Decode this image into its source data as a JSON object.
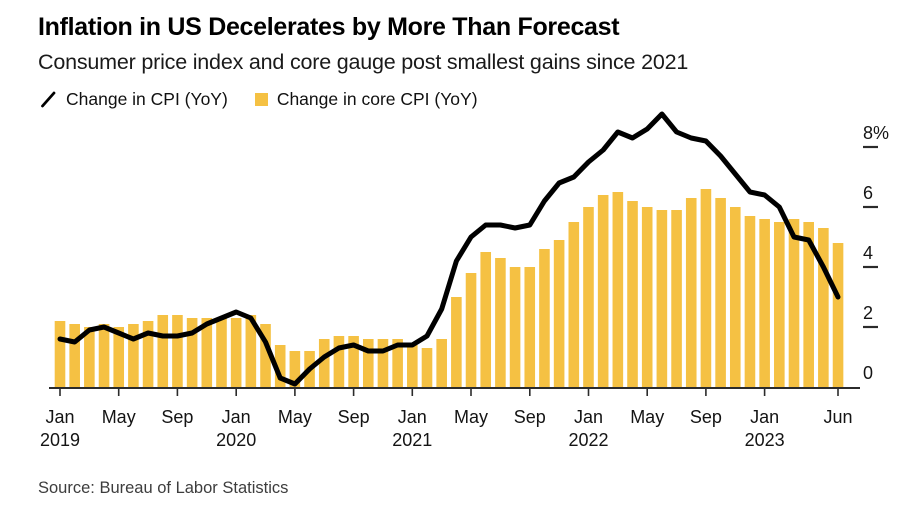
{
  "chart_data": {
    "type": "bar+line",
    "title": "Inflation in US Decelerates by More Than Forecast",
    "subtitle": "Consumer price index and core gauge post smallest gains since 2021",
    "source": "Source: Bureau of Labor Statistics",
    "legend_position": "top-left",
    "grid": false,
    "axis_color": "#2b2b2b",
    "text_color": "#141414",
    "ylim": [
      0,
      9.5
    ],
    "y_unit": "%",
    "x": [
      "Jan 2019",
      "Feb 2019",
      "Mar 2019",
      "Apr 2019",
      "May 2019",
      "Jun 2019",
      "Jul 2019",
      "Aug 2019",
      "Sep 2019",
      "Oct 2019",
      "Nov 2019",
      "Dec 2019",
      "Jan 2020",
      "Feb 2020",
      "Mar 2020",
      "Apr 2020",
      "May 2020",
      "Jun 2020",
      "Jul 2020",
      "Aug 2020",
      "Sep 2020",
      "Oct 2020",
      "Nov 2020",
      "Dec 2020",
      "Jan 2021",
      "Feb 2021",
      "Mar 2021",
      "Apr 2021",
      "May 2021",
      "Jun 2021",
      "Jul 2021",
      "Aug 2021",
      "Sep 2021",
      "Oct 2021",
      "Nov 2021",
      "Dec 2021",
      "Jan 2022",
      "Feb 2022",
      "Mar 2022",
      "Apr 2022",
      "May 2022",
      "Jun 2022",
      "Jul 2022",
      "Aug 2022",
      "Sep 2022",
      "Oct 2022",
      "Nov 2022",
      "Dec 2022",
      "Jan 2023",
      "Feb 2023",
      "Mar 2023",
      "Apr 2023",
      "May 2023",
      "Jun 2023"
    ],
    "series": [
      {
        "name": "Change in CPI (YoY)",
        "type": "line",
        "color": "#000000",
        "values": [
          1.6,
          1.5,
          1.9,
          2.0,
          1.8,
          1.6,
          1.8,
          1.7,
          1.7,
          1.8,
          2.1,
          2.3,
          2.5,
          2.3,
          1.5,
          0.3,
          0.1,
          0.6,
          1.0,
          1.3,
          1.4,
          1.2,
          1.2,
          1.4,
          1.4,
          1.7,
          2.6,
          4.2,
          5.0,
          5.4,
          5.4,
          5.3,
          5.4,
          6.2,
          6.8,
          7.0,
          7.5,
          7.9,
          8.5,
          8.3,
          8.6,
          9.1,
          8.5,
          8.3,
          8.2,
          7.7,
          7.1,
          6.5,
          6.4,
          6.0,
          5.0,
          4.9,
          4.0,
          3.0
        ]
      },
      {
        "name": "Change in core CPI (YoY)",
        "type": "bar",
        "color": "#F5C143",
        "values": [
          2.2,
          2.1,
          2.0,
          2.1,
          2.0,
          2.1,
          2.2,
          2.4,
          2.4,
          2.3,
          2.3,
          2.3,
          2.3,
          2.4,
          2.1,
          1.4,
          1.2,
          1.2,
          1.6,
          1.7,
          1.7,
          1.6,
          1.6,
          1.6,
          1.4,
          1.3,
          1.6,
          3.0,
          3.8,
          4.5,
          4.3,
          4.0,
          4.0,
          4.6,
          4.9,
          5.5,
          6.0,
          6.4,
          6.5,
          6.2,
          6.0,
          5.9,
          5.9,
          6.3,
          6.6,
          6.3,
          6.0,
          5.7,
          5.6,
          5.5,
          5.6,
          5.5,
          5.3,
          4.8
        ]
      }
    ],
    "x_ticks": [
      {
        "i": 0,
        "month": "Jan",
        "year": "2019"
      },
      {
        "i": 4,
        "month": "May"
      },
      {
        "i": 8,
        "month": "Sep"
      },
      {
        "i": 12,
        "month": "Jan",
        "year": "2020"
      },
      {
        "i": 16,
        "month": "May"
      },
      {
        "i": 20,
        "month": "Sep"
      },
      {
        "i": 24,
        "month": "Jan",
        "year": "2021"
      },
      {
        "i": 28,
        "month": "May"
      },
      {
        "i": 32,
        "month": "Sep"
      },
      {
        "i": 36,
        "month": "Jan",
        "year": "2022"
      },
      {
        "i": 40,
        "month": "May"
      },
      {
        "i": 44,
        "month": "Sep"
      },
      {
        "i": 48,
        "month": "Jan",
        "year": "2023"
      },
      {
        "i": 53,
        "month": "Jun"
      }
    ],
    "y_ticks": [
      {
        "value": 8,
        "label": "8%"
      },
      {
        "value": 6,
        "label": "6"
      },
      {
        "value": 4,
        "label": "4"
      },
      {
        "value": 2,
        "label": "2"
      },
      {
        "value": 0,
        "label": "0"
      }
    ]
  }
}
